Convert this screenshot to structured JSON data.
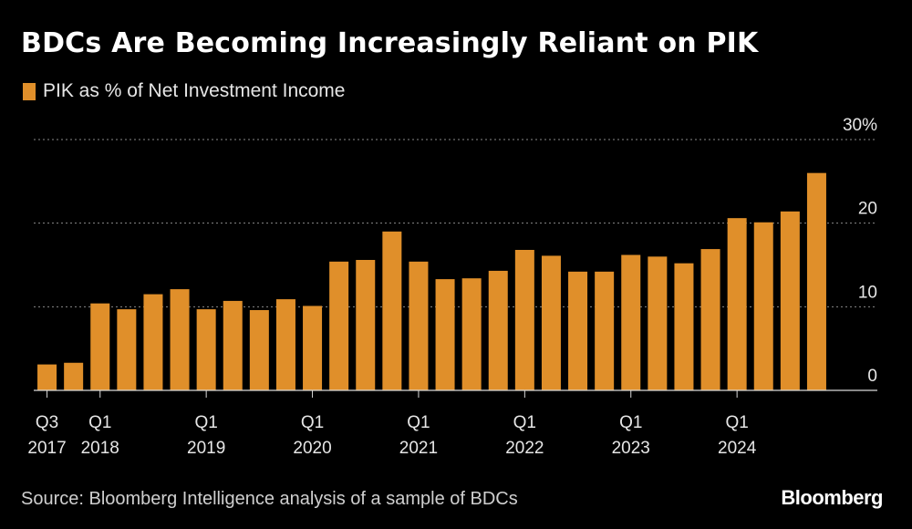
{
  "chart_data": {
    "type": "bar",
    "title": "BDCs Are Becoming Increasingly Reliant on PIK",
    "legend": "PIK as % of Net Investment Income",
    "categories": [
      "Q3 2017",
      "Q4 2017",
      "Q1 2018",
      "Q2 2018",
      "Q3 2018",
      "Q4 2018",
      "Q1 2019",
      "Q2 2019",
      "Q3 2019",
      "Q4 2019",
      "Q1 2020",
      "Q2 2020",
      "Q3 2020",
      "Q4 2020",
      "Q1 2021",
      "Q2 2021",
      "Q3 2021",
      "Q4 2021",
      "Q1 2022",
      "Q2 2022",
      "Q3 2022",
      "Q4 2022",
      "Q1 2023",
      "Q2 2023",
      "Q3 2023",
      "Q4 2023",
      "Q1 2024",
      "Q2 2024",
      "Q3 2024",
      "Q4 2024"
    ],
    "values": [
      3.1,
      3.3,
      10.4,
      9.7,
      11.5,
      12.1,
      9.7,
      10.7,
      9.6,
      10.9,
      10.1,
      15.4,
      15.6,
      19.0,
      15.4,
      13.3,
      13.4,
      14.3,
      16.8,
      16.1,
      14.2,
      14.2,
      16.2,
      16.0,
      15.2,
      16.9,
      20.6,
      20.1,
      21.4,
      26.0
    ],
    "ylim": [
      0,
      30
    ],
    "yticks": [
      {
        "value": 0,
        "label": "0"
      },
      {
        "value": 10,
        "label": "10"
      },
      {
        "value": 20,
        "label": "20"
      },
      {
        "value": 30,
        "label": "30%"
      }
    ],
    "xticks": [
      {
        "index": 0,
        "line1": "Q3",
        "line2": "2017"
      },
      {
        "index": 2,
        "line1": "Q1",
        "line2": "2018"
      },
      {
        "index": 6,
        "line1": "Q1",
        "line2": "2019"
      },
      {
        "index": 10,
        "line1": "Q1",
        "line2": "2020"
      },
      {
        "index": 14,
        "line1": "Q1",
        "line2": "2021"
      },
      {
        "index": 18,
        "line1": "Q1",
        "line2": "2022"
      },
      {
        "index": 22,
        "line1": "Q1",
        "line2": "2023"
      },
      {
        "index": 26,
        "line1": "Q1",
        "line2": "2024"
      }
    ],
    "bar_color": "#e08f2a",
    "grid": true,
    "xlabel": "",
    "ylabel": ""
  },
  "footer": {
    "source": "Source: Bloomberg Intelligence analysis of a sample of BDCs",
    "brand": "Bloomberg"
  }
}
